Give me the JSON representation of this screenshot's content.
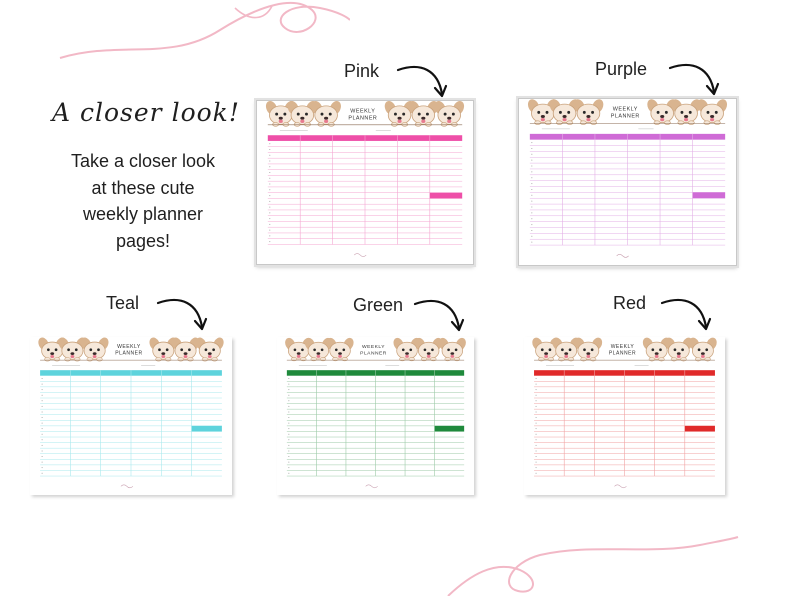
{
  "headline": "A closer look!",
  "subtext": "Take a closer look at these cute weekly planner pages!",
  "planner_title_line1": "WEEKLY",
  "planner_title_line2": "PLANNER",
  "variants": [
    {
      "id": "pink",
      "label": "Pink",
      "accent": "#ee4fa8",
      "line": "#f4a7d2"
    },
    {
      "id": "purple",
      "label": "Purple",
      "accent": "#cf6bd6",
      "line": "#e3b0e7"
    },
    {
      "id": "teal",
      "label": "Teal",
      "accent": "#5ed3dc",
      "line": "#a9e8ed"
    },
    {
      "id": "green",
      "label": "Green",
      "accent": "#1f8a3c",
      "line": "#9ccaa7"
    },
    {
      "id": "red",
      "label": "Red",
      "accent": "#e02a2a",
      "line": "#f0a3a3"
    }
  ],
  "decor_color": "#f2b8c6"
}
